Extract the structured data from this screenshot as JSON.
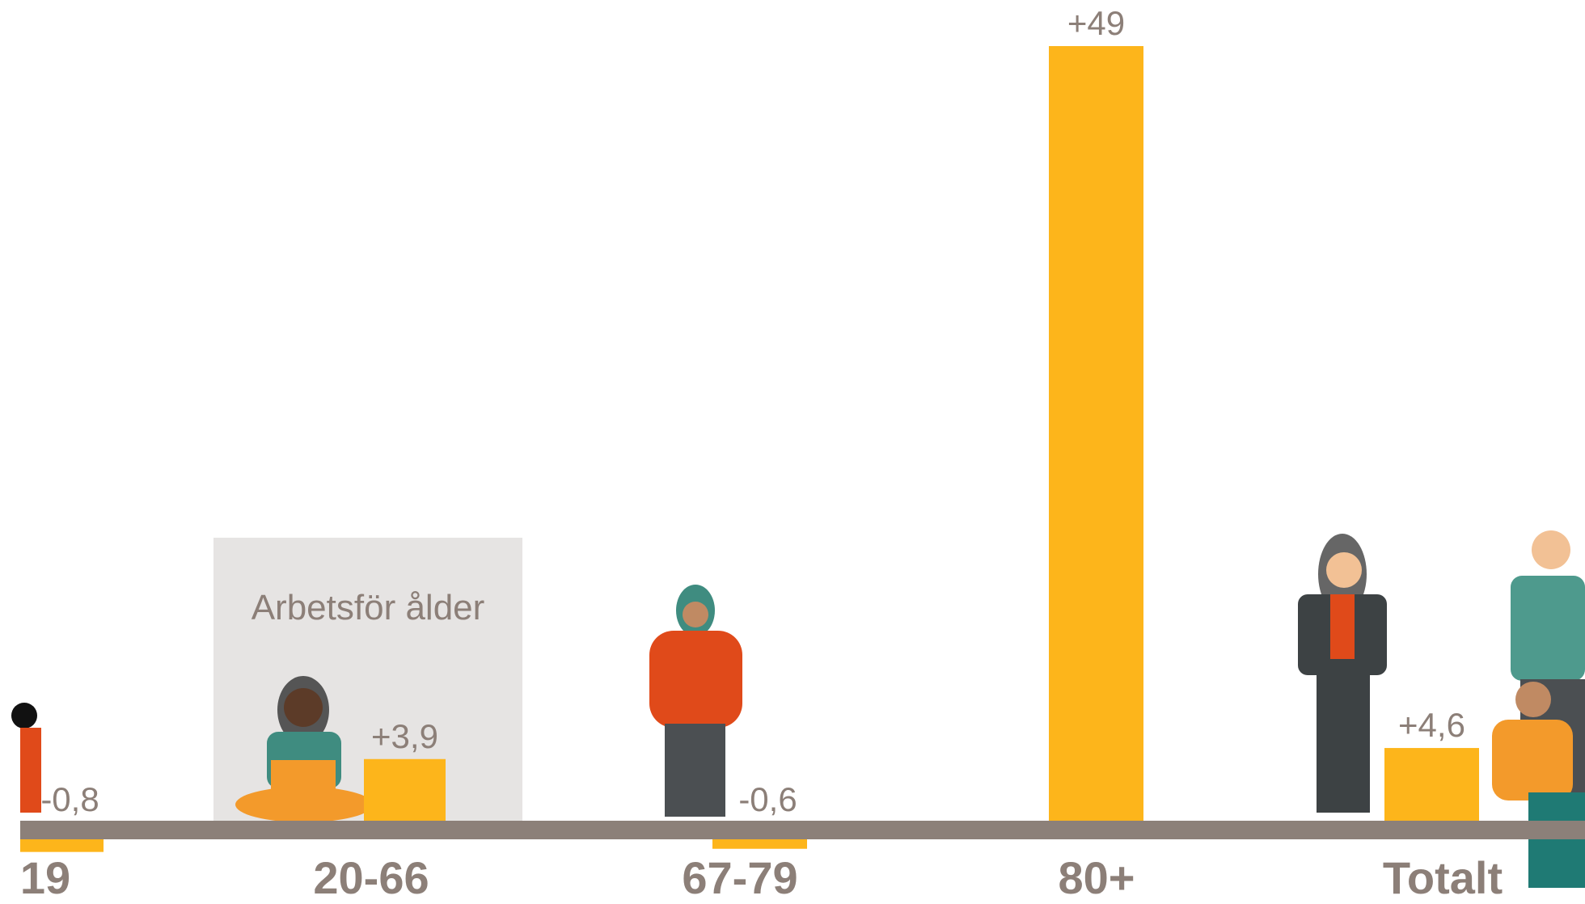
{
  "chart_data": {
    "type": "bar",
    "annotation": "Arbetsför ålder",
    "categories": [
      "19",
      "20-66",
      "67-79",
      "80+",
      "Totalt"
    ],
    "values": [
      -0.8,
      3.9,
      -0.6,
      49,
      4.6
    ],
    "value_labels": [
      "-0,8",
      "+3,9",
      "-0,6",
      "+49",
      "+4,6"
    ],
    "color": "#fdb51b",
    "baseline_color": "#8c8079"
  }
}
